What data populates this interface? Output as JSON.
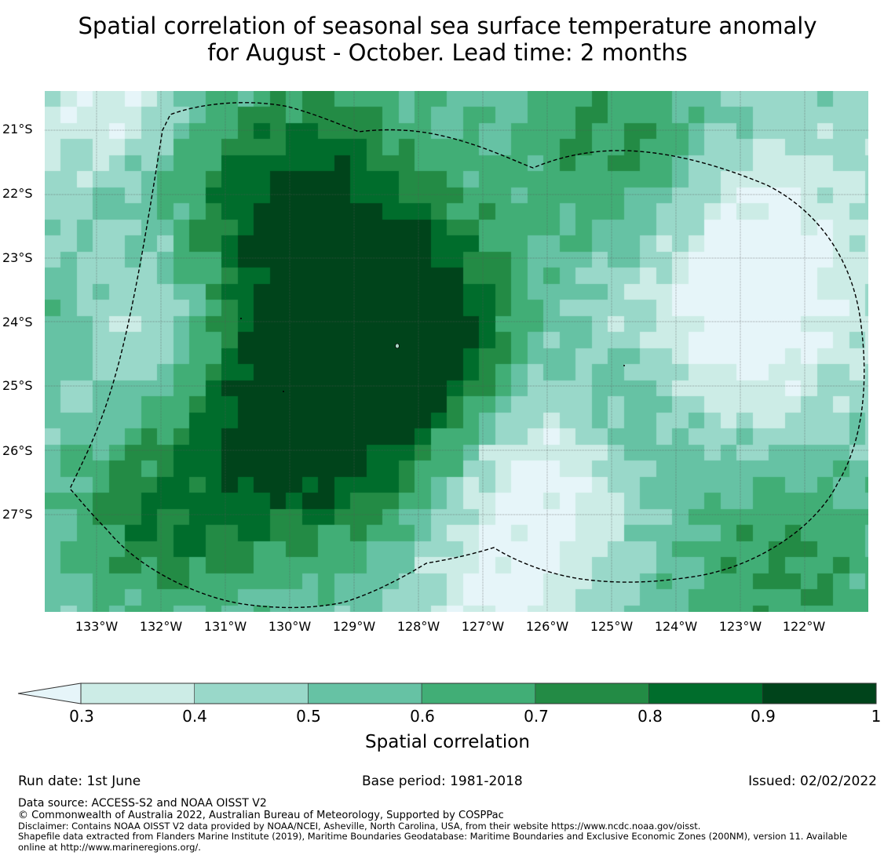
{
  "title": {
    "line1": "Spatial correlation of seasonal sea surface temperature anomaly",
    "line2": "for August - October. Lead time: 2 months"
  },
  "map": {
    "latitude_labels": [
      "21°S",
      "22°S",
      "23°S",
      "24°S",
      "25°S",
      "26°S",
      "27°S"
    ],
    "longitude_labels": [
      "133°W",
      "132°W",
      "131°W",
      "130°W",
      "129°W",
      "128°W",
      "127°W",
      "126°W",
      "125°W",
      "124°W",
      "123°W",
      "122°W"
    ],
    "boundary_style": "dashed black",
    "gridlines": true
  },
  "colorbar": {
    "label": "Spatial correlation",
    "ticks": [
      "0.3",
      "0.4",
      "0.5",
      "0.6",
      "0.7",
      "0.8",
      "0.9",
      "1"
    ],
    "extend": "min",
    "colors": [
      "#e6f5f9",
      "#ccece6",
      "#99d8c9",
      "#66c2a4",
      "#41ae76",
      "#238b45",
      "#006d2c",
      "#00441b"
    ],
    "under_color": "#e6f5f9"
  },
  "footer": {
    "run_date": "Run date: 1st June",
    "base_period": "Base period: 1981-2018",
    "issued": "Issued: 02/02/2022",
    "data_source": "Data source: ACCESS-S2 and NOAA OISST V2",
    "copyright": "© Commonwealth of Australia 2022, Australian Bureau of Meteorology, Supported by COSPPac",
    "disclaimer": "Disclaimer: Contains NOAA OISST V2 data provided by NOAA/NCEI, Asheville, North Carolina, USA, from their website https://www.ncdc.noaa.gov/oisst.",
    "shapefile_line1": "Shapefile data extracted from Flanders Marine Institute (2019), Maritime Boundaries Geodatabase: Maritime Boundaries and Exclusive Economic Zones (200NM), version 11. Available",
    "shapefile_line2": "online at http://www.marineregions.org/."
  }
}
